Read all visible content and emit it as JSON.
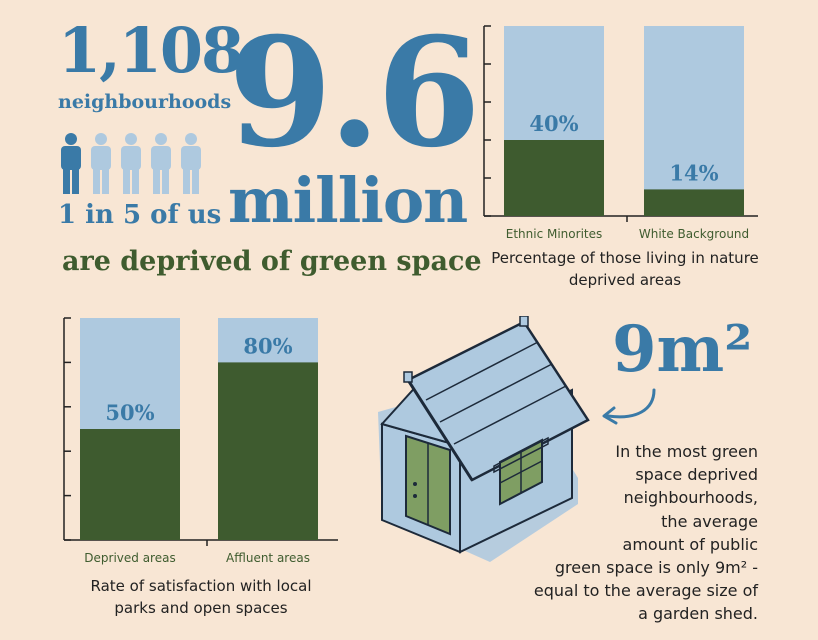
{
  "headline": {
    "count": "1,108",
    "count_unit": "neighbourhoods",
    "ratio": "1 in 5 of us",
    "people_total": 5,
    "people_highlighted": 1,
    "big_number": "9.6",
    "big_unit": "million",
    "tagline": "are deprived of green space"
  },
  "colors": {
    "background": "#f8e6d4",
    "blue_text": "#3a7aa7",
    "green_text": "#3f5c2f",
    "bar_light": "#aec9df",
    "bar_dark": "#3e5b2f"
  },
  "chart_data": [
    {
      "type": "bar",
      "stacked_to": 100,
      "categories": [
        "Ethnic Minorites",
        "White Background"
      ],
      "values": [
        40,
        14
      ],
      "data_labels": [
        "40%",
        "14%"
      ],
      "title": "",
      "caption": "Percentage of those living in nature deprived areas",
      "xlabel": "",
      "ylabel": "",
      "ylim": [
        0,
        100
      ],
      "grid": false
    },
    {
      "type": "bar",
      "stacked_to": 100,
      "categories": [
        "Deprived areas",
        "Affluent areas"
      ],
      "values": [
        50,
        80
      ],
      "data_labels": [
        "50%",
        "80%"
      ],
      "title": "",
      "caption": "Rate of satisfaction with local parks and open spaces",
      "xlabel": "",
      "ylabel": "",
      "ylim": [
        0,
        100
      ],
      "grid": false
    }
  ],
  "shed": {
    "big_value": "9m²",
    "description": "In the most green space deprived neighbourhoods, the average amount of public green space is only 9m² - equal to the average size of a garden shed.",
    "desc_lines": [
      "In the most green",
      "space deprived",
      "neighbourhoods,",
      "the average",
      "amount of public",
      "green space is only 9m² -",
      "equal to the average size of",
      "a garden shed."
    ]
  }
}
